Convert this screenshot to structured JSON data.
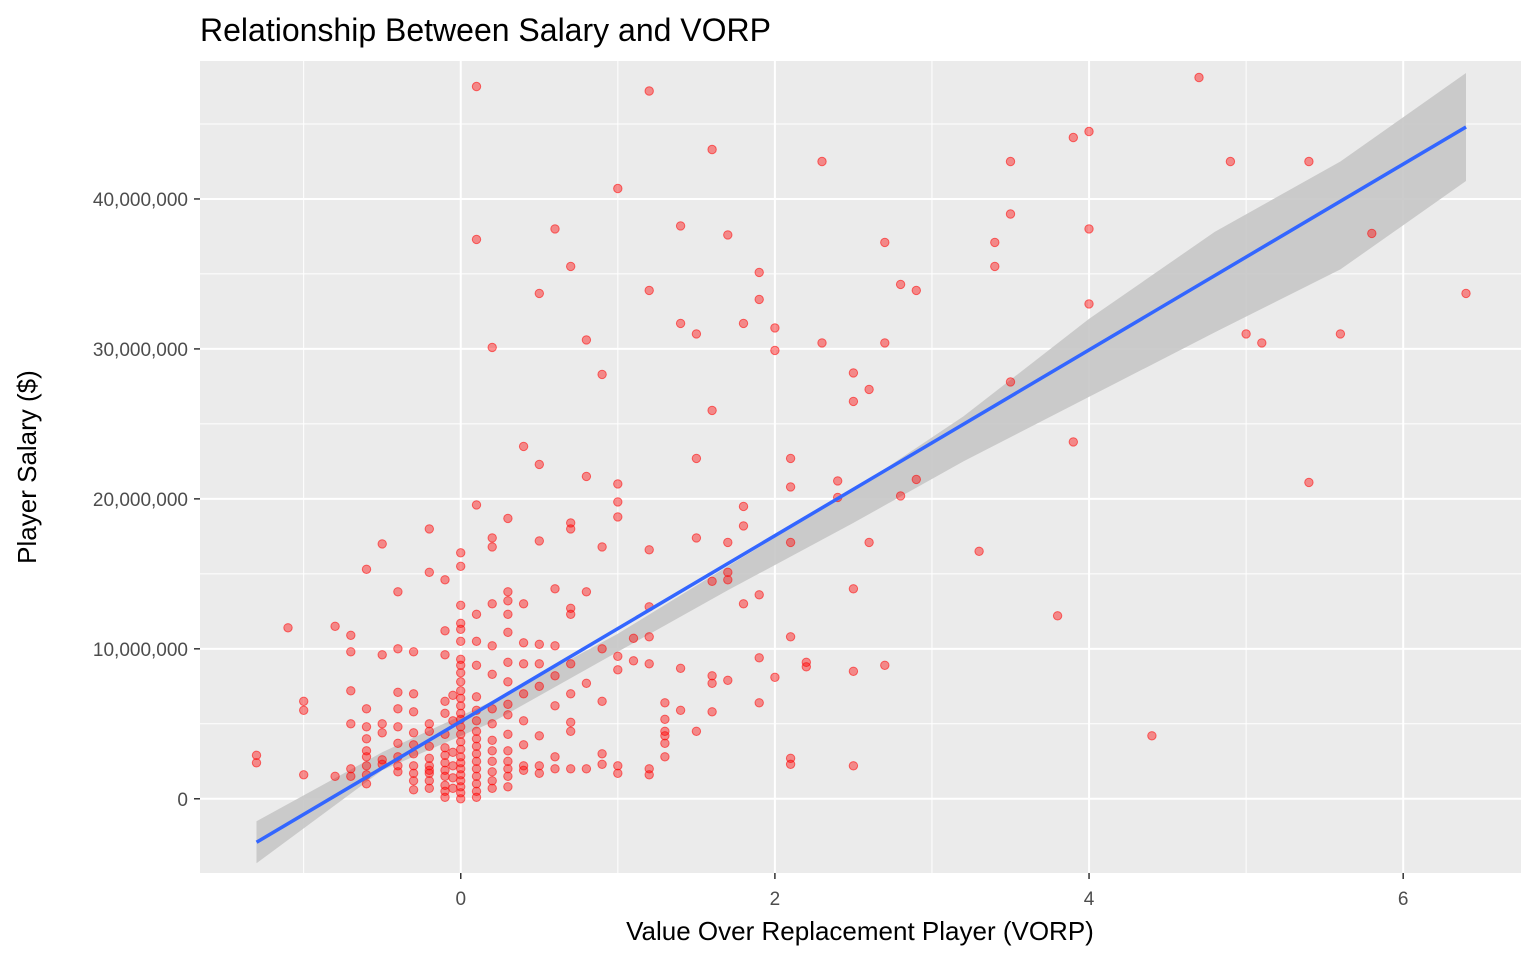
{
  "chart_data": {
    "type": "scatter",
    "title": "Relationship Between Salary and VORP",
    "xlabel": "Value Over Replacement Player (VORP)",
    "ylabel": "Player Salary ($)",
    "xlim": [
      -1.66,
      6.75
    ],
    "ylim": [
      -4950000,
      49200000
    ],
    "x_ticks": [
      0,
      2,
      4,
      6
    ],
    "x_tick_labels": [
      "0",
      "2",
      "4",
      "6"
    ],
    "y_ticks": [
      0,
      10000000,
      20000000,
      30000000,
      40000000
    ],
    "y_tick_labels": [
      "0",
      "10,000,000",
      "20,000,000",
      "30,000,000",
      "40,000,000"
    ],
    "grid": true,
    "legend": "none",
    "colors": {
      "panel": "#ebebeb",
      "grid": "#ffffff",
      "points": "#ff0000",
      "fit_line": "#3366ff",
      "band": "#c7c7c7"
    },
    "points": [
      [
        -1.3,
        2900000
      ],
      [
        -1.3,
        2400000
      ],
      [
        -1.1,
        11400000
      ],
      [
        -1.0,
        6500000
      ],
      [
        -1.0,
        5900000
      ],
      [
        -1.0,
        1600000
      ],
      [
        -0.8,
        11500000
      ],
      [
        -0.8,
        1500000
      ],
      [
        -0.7,
        10900000
      ],
      [
        -0.7,
        9800000
      ],
      [
        -0.7,
        7200000
      ],
      [
        -0.7,
        5000000
      ],
      [
        -0.7,
        2000000
      ],
      [
        -0.7,
        1500000
      ],
      [
        -0.6,
        15300000
      ],
      [
        -0.6,
        6000000
      ],
      [
        -0.6,
        4800000
      ],
      [
        -0.6,
        4000000
      ],
      [
        -0.6,
        3200000
      ],
      [
        -0.6,
        2800000
      ],
      [
        -0.6,
        2200000
      ],
      [
        -0.6,
        1600000
      ],
      [
        -0.6,
        1000000
      ],
      [
        -0.5,
        17000000
      ],
      [
        -0.5,
        9600000
      ],
      [
        -0.5,
        5000000
      ],
      [
        -0.5,
        4400000
      ],
      [
        -0.5,
        2600000
      ],
      [
        -0.5,
        2300000
      ],
      [
        -0.4,
        13800000
      ],
      [
        -0.4,
        10000000
      ],
      [
        -0.4,
        7100000
      ],
      [
        -0.4,
        6000000
      ],
      [
        -0.4,
        4800000
      ],
      [
        -0.4,
        3700000
      ],
      [
        -0.4,
        2800000
      ],
      [
        -0.4,
        2200000
      ],
      [
        -0.4,
        1800000
      ],
      [
        -0.3,
        9800000
      ],
      [
        -0.3,
        7000000
      ],
      [
        -0.3,
        5800000
      ],
      [
        -0.3,
        4400000
      ],
      [
        -0.3,
        3600000
      ],
      [
        -0.3,
        3000000
      ],
      [
        -0.3,
        2200000
      ],
      [
        -0.3,
        1700000
      ],
      [
        -0.3,
        1200000
      ],
      [
        -0.3,
        600000
      ],
      [
        -0.2,
        18000000
      ],
      [
        -0.2,
        15100000
      ],
      [
        -0.2,
        5000000
      ],
      [
        -0.2,
        4500000
      ],
      [
        -0.2,
        3500000
      ],
      [
        -0.2,
        2700000
      ],
      [
        -0.2,
        2200000
      ],
      [
        -0.2,
        1900000
      ],
      [
        -0.2,
        1700000
      ],
      [
        -0.2,
        1200000
      ],
      [
        -0.2,
        700000
      ],
      [
        -0.1,
        14600000
      ],
      [
        -0.1,
        11200000
      ],
      [
        -0.1,
        9600000
      ],
      [
        -0.1,
        6500000
      ],
      [
        -0.1,
        5700000
      ],
      [
        -0.1,
        4300000
      ],
      [
        -0.1,
        3400000
      ],
      [
        -0.1,
        2900000
      ],
      [
        -0.1,
        2400000
      ],
      [
        -0.1,
        1900000
      ],
      [
        -0.1,
        1500000
      ],
      [
        -0.1,
        900000
      ],
      [
        -0.1,
        500000
      ],
      [
        -0.1,
        100000
      ],
      [
        -0.05,
        6900000
      ],
      [
        -0.05,
        5200000
      ],
      [
        -0.05,
        3100000
      ],
      [
        -0.05,
        2200000
      ],
      [
        -0.05,
        1400000
      ],
      [
        -0.05,
        700000
      ],
      [
        0.0,
        16400000
      ],
      [
        0.0,
        15500000
      ],
      [
        0.0,
        12900000
      ],
      [
        0.0,
        11700000
      ],
      [
        0.0,
        11300000
      ],
      [
        0.0,
        10500000
      ],
      [
        0.0,
        9300000
      ],
      [
        0.0,
        8900000
      ],
      [
        0.0,
        8400000
      ],
      [
        0.0,
        7800000
      ],
      [
        0.0,
        7200000
      ],
      [
        0.0,
        6700000
      ],
      [
        0.0,
        6200000
      ],
      [
        0.0,
        5700000
      ],
      [
        0.0,
        5300000
      ],
      [
        0.0,
        4800000
      ],
      [
        0.0,
        4300000
      ],
      [
        0.0,
        3800000
      ],
      [
        0.0,
        3300000
      ],
      [
        0.0,
        2800000
      ],
      [
        0.0,
        2400000
      ],
      [
        0.0,
        2000000
      ],
      [
        0.0,
        1600000
      ],
      [
        0.0,
        1200000
      ],
      [
        0.0,
        800000
      ],
      [
        0.0,
        400000
      ],
      [
        0.0,
        0
      ],
      [
        0.1,
        47500000
      ],
      [
        0.1,
        37300000
      ],
      [
        0.1,
        19600000
      ],
      [
        0.1,
        12300000
      ],
      [
        0.1,
        10500000
      ],
      [
        0.1,
        8900000
      ],
      [
        0.1,
        6800000
      ],
      [
        0.1,
        5900000
      ],
      [
        0.1,
        5200000
      ],
      [
        0.1,
        4500000
      ],
      [
        0.1,
        4000000
      ],
      [
        0.1,
        3500000
      ],
      [
        0.1,
        3000000
      ],
      [
        0.1,
        2500000
      ],
      [
        0.1,
        2000000
      ],
      [
        0.1,
        1500000
      ],
      [
        0.1,
        1000000
      ],
      [
        0.1,
        500000
      ],
      [
        0.1,
        100000
      ],
      [
        0.2,
        30100000
      ],
      [
        0.2,
        17400000
      ],
      [
        0.2,
        16800000
      ],
      [
        0.2,
        13000000
      ],
      [
        0.2,
        10200000
      ],
      [
        0.2,
        8300000
      ],
      [
        0.2,
        6000000
      ],
      [
        0.2,
        5000000
      ],
      [
        0.2,
        3900000
      ],
      [
        0.2,
        3200000
      ],
      [
        0.2,
        2500000
      ],
      [
        0.2,
        1800000
      ],
      [
        0.2,
        1200000
      ],
      [
        0.2,
        700000
      ],
      [
        0.3,
        18700000
      ],
      [
        0.3,
        13800000
      ],
      [
        0.3,
        13200000
      ],
      [
        0.3,
        12300000
      ],
      [
        0.3,
        11100000
      ],
      [
        0.3,
        9100000
      ],
      [
        0.3,
        7800000
      ],
      [
        0.3,
        6300000
      ],
      [
        0.3,
        5600000
      ],
      [
        0.3,
        4300000
      ],
      [
        0.3,
        3200000
      ],
      [
        0.3,
        2500000
      ],
      [
        0.3,
        2000000
      ],
      [
        0.3,
        1500000
      ],
      [
        0.3,
        800000
      ],
      [
        0.4,
        23500000
      ],
      [
        0.4,
        13000000
      ],
      [
        0.4,
        10400000
      ],
      [
        0.4,
        9000000
      ],
      [
        0.4,
        7000000
      ],
      [
        0.4,
        5200000
      ],
      [
        0.4,
        3600000
      ],
      [
        0.4,
        2200000
      ],
      [
        0.4,
        1900000
      ],
      [
        0.5,
        33700000
      ],
      [
        0.5,
        22300000
      ],
      [
        0.5,
        17200000
      ],
      [
        0.5,
        10300000
      ],
      [
        0.5,
        9000000
      ],
      [
        0.5,
        7500000
      ],
      [
        0.5,
        4200000
      ],
      [
        0.5,
        2200000
      ],
      [
        0.5,
        1700000
      ],
      [
        0.6,
        38000000
      ],
      [
        0.6,
        14000000
      ],
      [
        0.6,
        10200000
      ],
      [
        0.6,
        8200000
      ],
      [
        0.6,
        6200000
      ],
      [
        0.6,
        2800000
      ],
      [
        0.6,
        2000000
      ],
      [
        0.7,
        35500000
      ],
      [
        0.7,
        18400000
      ],
      [
        0.7,
        18000000
      ],
      [
        0.7,
        12700000
      ],
      [
        0.7,
        12300000
      ],
      [
        0.7,
        9000000
      ],
      [
        0.7,
        7000000
      ],
      [
        0.7,
        5100000
      ],
      [
        0.7,
        4500000
      ],
      [
        0.7,
        2000000
      ],
      [
        0.8,
        30600000
      ],
      [
        0.8,
        21500000
      ],
      [
        0.8,
        13800000
      ],
      [
        0.8,
        7700000
      ],
      [
        0.8,
        2000000
      ],
      [
        0.9,
        28300000
      ],
      [
        0.9,
        16800000
      ],
      [
        0.9,
        10000000
      ],
      [
        0.9,
        6500000
      ],
      [
        0.9,
        3000000
      ],
      [
        0.9,
        2300000
      ],
      [
        1.0,
        40700000
      ],
      [
        1.0,
        21000000
      ],
      [
        1.0,
        19800000
      ],
      [
        1.0,
        18800000
      ],
      [
        1.0,
        9500000
      ],
      [
        1.0,
        8600000
      ],
      [
        1.0,
        2200000
      ],
      [
        1.0,
        1700000
      ],
      [
        1.1,
        10700000
      ],
      [
        1.1,
        9200000
      ],
      [
        1.2,
        47200000
      ],
      [
        1.2,
        33900000
      ],
      [
        1.2,
        16600000
      ],
      [
        1.2,
        12800000
      ],
      [
        1.2,
        10800000
      ],
      [
        1.2,
        9000000
      ],
      [
        1.2,
        2000000
      ],
      [
        1.2,
        1600000
      ],
      [
        1.3,
        6400000
      ],
      [
        1.3,
        5300000
      ],
      [
        1.3,
        4500000
      ],
      [
        1.3,
        4200000
      ],
      [
        1.3,
        3700000
      ],
      [
        1.3,
        2800000
      ],
      [
        1.4,
        38200000
      ],
      [
        1.4,
        31700000
      ],
      [
        1.4,
        8700000
      ],
      [
        1.4,
        5900000
      ],
      [
        1.5,
        31000000
      ],
      [
        1.5,
        22700000
      ],
      [
        1.5,
        17400000
      ],
      [
        1.5,
        4500000
      ],
      [
        1.6,
        43300000
      ],
      [
        1.6,
        25900000
      ],
      [
        1.6,
        14500000
      ],
      [
        1.6,
        8200000
      ],
      [
        1.6,
        7700000
      ],
      [
        1.6,
        5800000
      ],
      [
        1.7,
        37600000
      ],
      [
        1.7,
        17100000
      ],
      [
        1.7,
        15100000
      ],
      [
        1.7,
        14600000
      ],
      [
        1.7,
        7900000
      ],
      [
        1.8,
        31700000
      ],
      [
        1.8,
        19500000
      ],
      [
        1.8,
        18200000
      ],
      [
        1.8,
        13000000
      ],
      [
        1.9,
        35100000
      ],
      [
        1.9,
        33300000
      ],
      [
        1.9,
        13600000
      ],
      [
        1.9,
        9400000
      ],
      [
        1.9,
        6400000
      ],
      [
        2.0,
        31400000
      ],
      [
        2.0,
        29900000
      ],
      [
        2.0,
        8100000
      ],
      [
        2.1,
        22700000
      ],
      [
        2.1,
        20800000
      ],
      [
        2.1,
        17100000
      ],
      [
        2.1,
        10800000
      ],
      [
        2.1,
        2700000
      ],
      [
        2.1,
        2300000
      ],
      [
        2.2,
        9100000
      ],
      [
        2.2,
        8800000
      ],
      [
        2.3,
        42500000
      ],
      [
        2.3,
        30400000
      ],
      [
        2.4,
        21200000
      ],
      [
        2.4,
        20100000
      ],
      [
        2.5,
        28400000
      ],
      [
        2.5,
        26500000
      ],
      [
        2.5,
        14000000
      ],
      [
        2.5,
        8500000
      ],
      [
        2.5,
        2200000
      ],
      [
        2.6,
        27300000
      ],
      [
        2.6,
        17100000
      ],
      [
        2.7,
        37100000
      ],
      [
        2.7,
        30400000
      ],
      [
        2.7,
        8900000
      ],
      [
        2.8,
        34300000
      ],
      [
        2.8,
        20200000
      ],
      [
        2.9,
        33900000
      ],
      [
        2.9,
        21300000
      ],
      [
        3.3,
        16500000
      ],
      [
        3.4,
        37100000
      ],
      [
        3.4,
        35500000
      ],
      [
        3.5,
        42500000
      ],
      [
        3.5,
        39000000
      ],
      [
        3.5,
        27800000
      ],
      [
        3.8,
        12200000
      ],
      [
        3.9,
        44100000
      ],
      [
        3.9,
        23800000
      ],
      [
        4.0,
        44500000
      ],
      [
        4.0,
        38000000
      ],
      [
        4.0,
        33000000
      ],
      [
        4.4,
        4200000
      ],
      [
        4.7,
        48100000
      ],
      [
        4.9,
        42500000
      ],
      [
        5.0,
        31000000
      ],
      [
        5.1,
        30400000
      ],
      [
        5.4,
        42500000
      ],
      [
        5.4,
        21100000
      ],
      [
        5.6,
        31000000
      ],
      [
        5.8,
        37700000
      ],
      [
        6.4,
        33700000
      ]
    ],
    "fit": {
      "x_start": -1.3,
      "y_start": -2900000,
      "x_end": 6.4,
      "y_end": 44800000
    },
    "band": {
      "x": [
        -1.3,
        -0.5,
        0.2,
        1.0,
        1.7,
        2.5,
        3.2,
        4.0,
        4.8,
        5.6,
        6.4
      ],
      "lower": [
        -4300000,
        1900000,
        5100000,
        9800000,
        13900000,
        18400000,
        22500000,
        26800000,
        31100000,
        35300000,
        41200000
      ],
      "upper": [
        -1500000,
        3100000,
        6500000,
        11000000,
        15500000,
        20600000,
        25500000,
        32000000,
        37800000,
        42500000,
        48400000
      ]
    }
  }
}
